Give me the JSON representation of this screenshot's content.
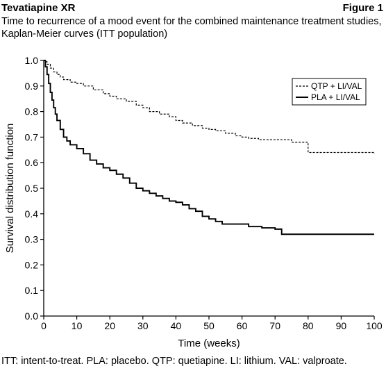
{
  "header": {
    "title": "Tevatiapine XR",
    "figure_label": "Figure 1",
    "caption_line1": "Time to recurrence of a mood event for the combined maintenance treatment studies,",
    "caption_line2": "Kaplan-Meier curves (ITT population)"
  },
  "footnote": "ITT: intent-to-treat. PLA: placebo. QTP: quetiapine. LI: lithium. VAL: valproate.",
  "chart_data": {
    "type": "line",
    "xlabel": "Time (weeks)",
    "ylabel": "Survival distribution function",
    "xlim": [
      0,
      100
    ],
    "ylim": [
      0,
      1
    ],
    "x_ticks": [
      0,
      10,
      20,
      30,
      40,
      50,
      60,
      70,
      80,
      90,
      100
    ],
    "y_ticks": [
      0.0,
      0.1,
      0.2,
      0.3,
      0.4,
      0.5,
      0.6,
      0.7,
      0.8,
      0.9,
      1.0
    ],
    "y_tick_labels": [
      "0.0",
      "0.1",
      "0.2",
      "0.3",
      "0.4",
      "0.5",
      "0.6",
      "0.7",
      "0.8",
      "0.9",
      "1.0"
    ],
    "legend_position": "top-right",
    "grid": false,
    "series": [
      {
        "name": "QTP + LI/VAL",
        "style": "dashed",
        "color": "#000000",
        "x": [
          0,
          0.5,
          1,
          2,
          3,
          4,
          5,
          6,
          8,
          10,
          12,
          15,
          18,
          20,
          22,
          25,
          28,
          30,
          32,
          35,
          38,
          40,
          42,
          45,
          48,
          50,
          52,
          55,
          58,
          60,
          62,
          65,
          70,
          75,
          78,
          80,
          90,
          100
        ],
        "y": [
          1.0,
          0.995,
          0.985,
          0.97,
          0.955,
          0.945,
          0.935,
          0.925,
          0.915,
          0.91,
          0.9,
          0.885,
          0.87,
          0.86,
          0.85,
          0.84,
          0.825,
          0.815,
          0.8,
          0.79,
          0.78,
          0.765,
          0.755,
          0.745,
          0.735,
          0.73,
          0.725,
          0.715,
          0.705,
          0.7,
          0.695,
          0.69,
          0.69,
          0.68,
          0.68,
          0.64,
          0.64,
          0.635
        ]
      },
      {
        "name": "PLA + LI/VAL",
        "style": "solid",
        "color": "#000000",
        "x": [
          0,
          0.5,
          1,
          1.5,
          2,
          2.5,
          3,
          3.5,
          4,
          5,
          6,
          7,
          8,
          10,
          12,
          14,
          16,
          18,
          20,
          22,
          24,
          26,
          28,
          30,
          32,
          34,
          36,
          38,
          40,
          42,
          44,
          46,
          48,
          50,
          52,
          54,
          58,
          62,
          66,
          70,
          72,
          80,
          90,
          100
        ],
        "y": [
          1.0,
          0.975,
          0.945,
          0.91,
          0.875,
          0.845,
          0.815,
          0.79,
          0.765,
          0.73,
          0.7,
          0.685,
          0.67,
          0.655,
          0.635,
          0.61,
          0.595,
          0.58,
          0.57,
          0.555,
          0.54,
          0.52,
          0.5,
          0.49,
          0.48,
          0.47,
          0.46,
          0.45,
          0.445,
          0.435,
          0.42,
          0.41,
          0.39,
          0.38,
          0.37,
          0.36,
          0.36,
          0.35,
          0.345,
          0.34,
          0.32,
          0.32,
          0.32,
          0.32
        ]
      }
    ]
  }
}
